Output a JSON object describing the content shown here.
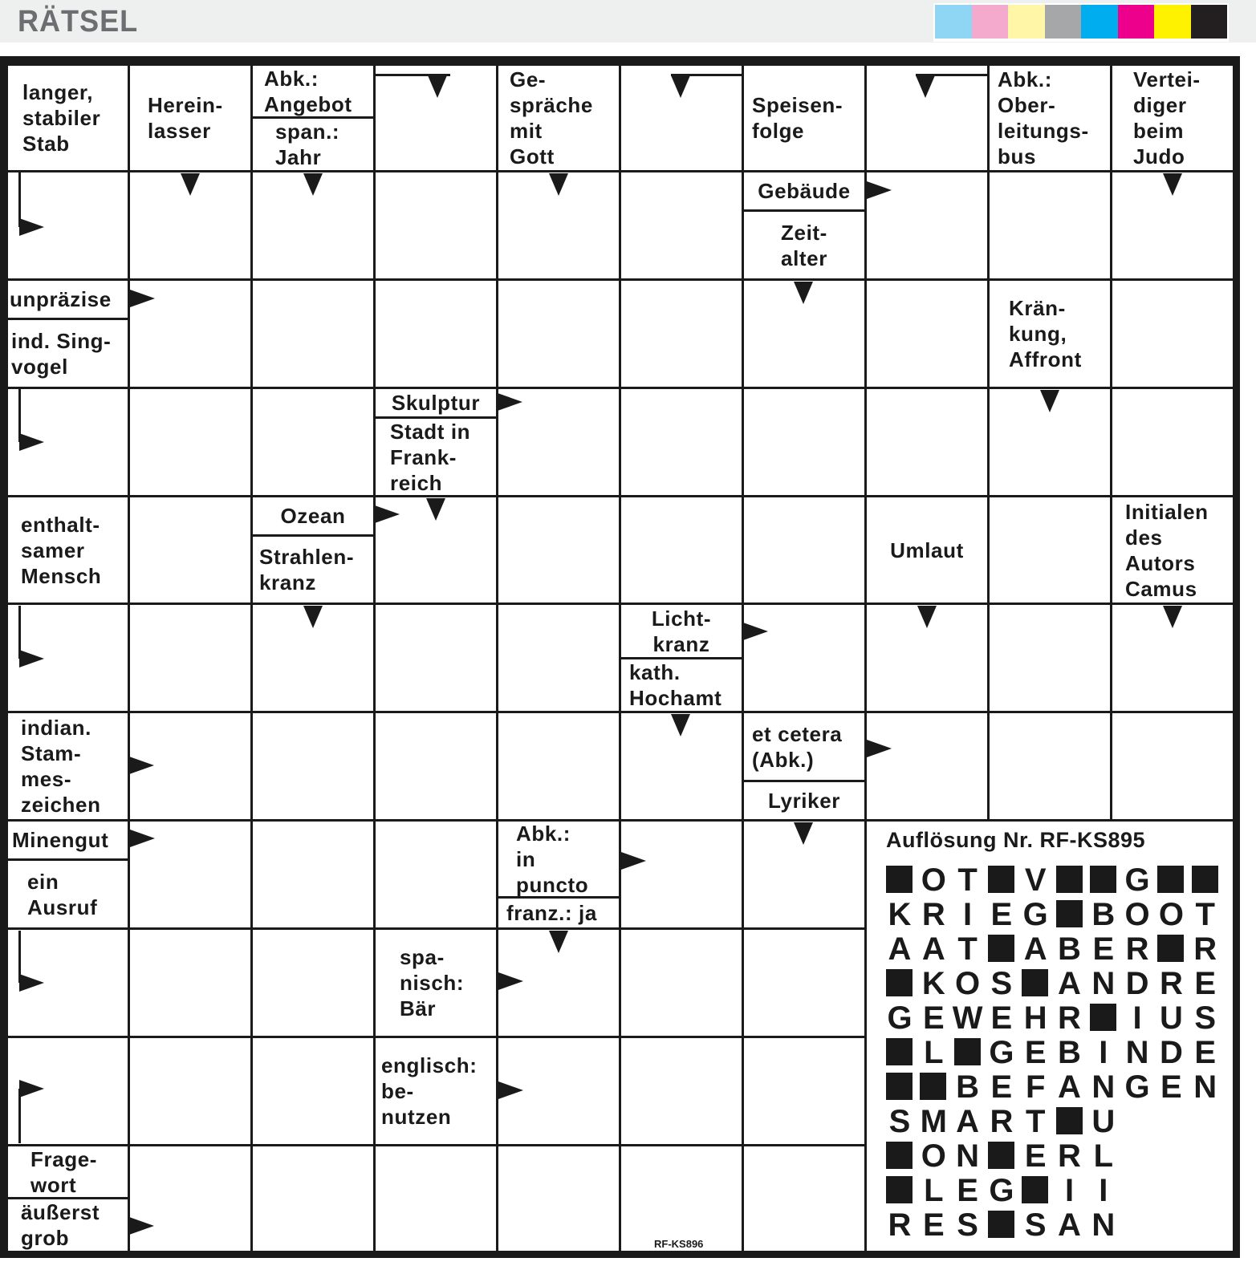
{
  "header": {
    "title": "RÄTSEL",
    "color_swatches": [
      "#8fd6f4",
      "#f3aacd",
      "#fff6a8",
      "#a6a7a9",
      "#00aeef",
      "#ec008c",
      "#fff200",
      "#231f20"
    ]
  },
  "clues": [
    "langer,\nstabiler\nStab",
    "Herein-\nlasser",
    "Abk.:\nAngebot",
    "span.:\nJahr",
    "Ge-\nspräche\nmit\nGott",
    "Speisen-\nfolge",
    "Abk.:\nOber-\nleitungs-\nbus",
    "Vertei-\ndiger\nbeim\nJudo",
    "Gebäude",
    "Zeit-\nalter",
    "unpräzise",
    "ind. Sing-\nvogel",
    "Krän-\nkung,\nAffront",
    "Skulptur",
    "Stadt in\nFrank-\nreich",
    "enthalt-\nsamer\nMensch",
    "Ozean",
    "Strahlen-\nkranz",
    "Umlaut",
    "Initialen\ndes\nAutors\nCamus",
    "Licht-\nkranz",
    "kath.\nHochamt",
    "indian.\nStam-\nmes-\nzeichen",
    "et cetera\n(Abk.)",
    "Lyriker",
    "Minengut",
    "ein\nAusruf",
    "Abk.:\nin\npuncto",
    "franz.: ja",
    "spa-\nnisch:\nBär",
    "englisch:\nbe-\nnutzen",
    "Frage-\nwort",
    "äußerst\ngrob"
  ],
  "solution": {
    "title": "Auflösung Nr. RF-KS895",
    "rows": [
      "#OT#V##G##",
      "KRIEG#BOOT",
      "AAT#ABER#R",
      "#KOS#ANDRE",
      "GEWEHR#IUS",
      "#L#GEBINDE",
      "##BEFANGEN",
      "SMART#U",
      "#ON#ERL",
      "#LEG#II",
      "RES#SAN"
    ]
  },
  "puzzle_code": "RF-KS896"
}
